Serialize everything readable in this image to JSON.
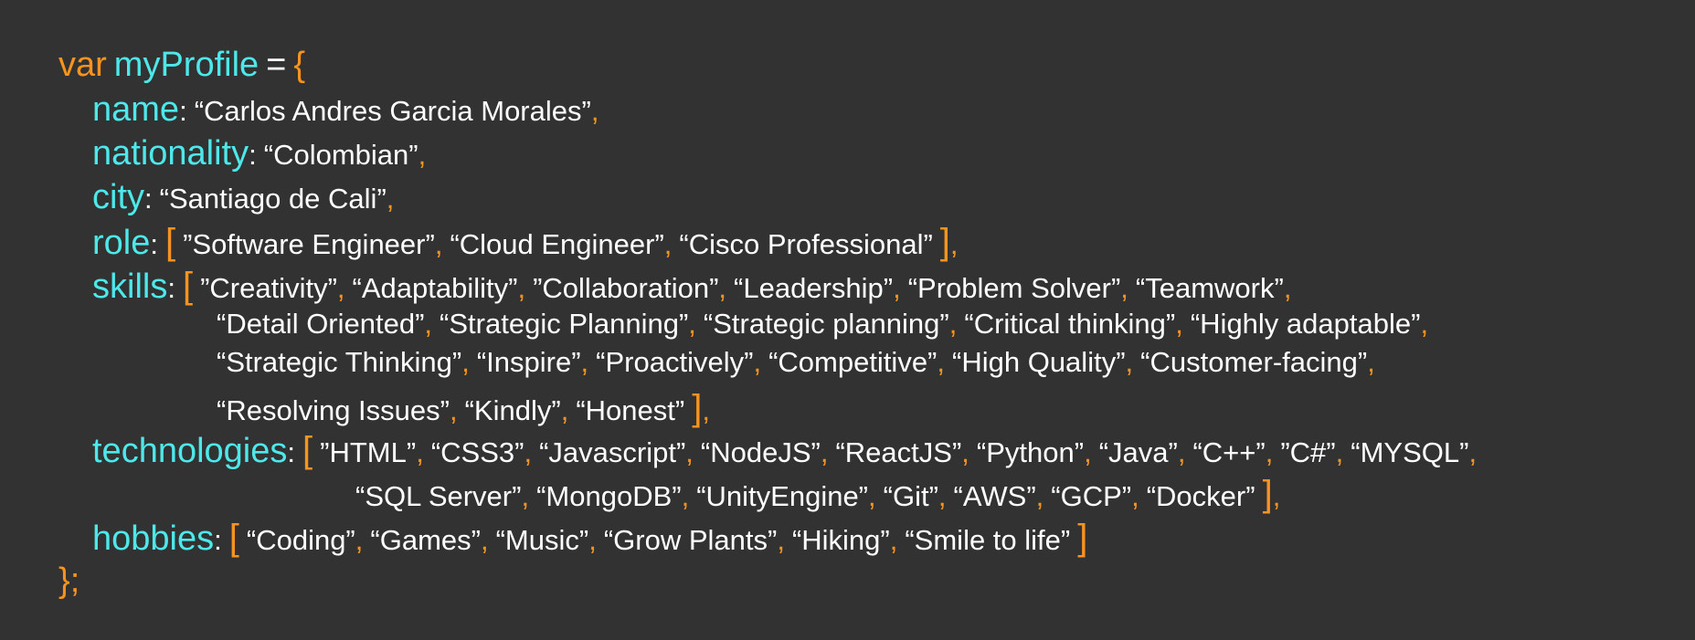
{
  "code": {
    "keyword": "var",
    "variable": "myProfile",
    "assign": "=",
    "open_brace": "{",
    "close_brace": "}",
    "semicolon": ";",
    "colon": ":",
    "comma": ",",
    "open_bracket": "[",
    "close_bracket": "]",
    "name": {
      "key": "name",
      "value": "“Carlos Andres Garcia Morales”"
    },
    "nationality": {
      "key": "nationality",
      "value": "“Colombian”"
    },
    "city": {
      "key": "city",
      "value": "“Santiago de Cali”"
    },
    "role": {
      "key": "role",
      "values": [
        "”Software Engineer”",
        "“Cloud Engineer”",
        "“Cisco Professional”"
      ]
    },
    "skills": {
      "key": "skills",
      "values": [
        "”Creativity”",
        "“Adaptability”",
        "”Collaboration”",
        "“Leadership”",
        "“Problem Solver”",
        "“Teamwork”",
        "“Detail Oriented”",
        "“Strategic Planning”",
        "“Strategic planning”",
        "“Critical thinking”",
        "“Highly adaptable”",
        "“Strategic Thinking”",
        "“Inspire”",
        "“Proactively”",
        "“Competitive”",
        "“High Quality”",
        "“Customer-facing”",
        "“Resolving Issues”",
        "“Kindly”",
        "“Honest”"
      ]
    },
    "technologies": {
      "key": "technologies",
      "values": [
        "”HTML”",
        "“CSS3”",
        "“Javascript”",
        "“NodeJS”",
        "“ReactJS”",
        "“Python”",
        "“Java”",
        "“C++”",
        "”C#”",
        "“MYSQL”",
        "“SQL Server”",
        "“MongoDB”",
        "“UnityEngine”",
        "“Git”",
        "“AWS”",
        "“GCP”",
        "“Docker”"
      ]
    },
    "hobbies": {
      "key": "hobbies",
      "values": [
        "“Coding”",
        "“Games”",
        "“Music”",
        "“Grow Plants”",
        "“Hiking”",
        "“Smile to life”"
      ]
    }
  },
  "colors": {
    "background": "#323232",
    "keyword": "#f7931e",
    "identifier": "#4de8ea",
    "text": "#ffffff"
  }
}
